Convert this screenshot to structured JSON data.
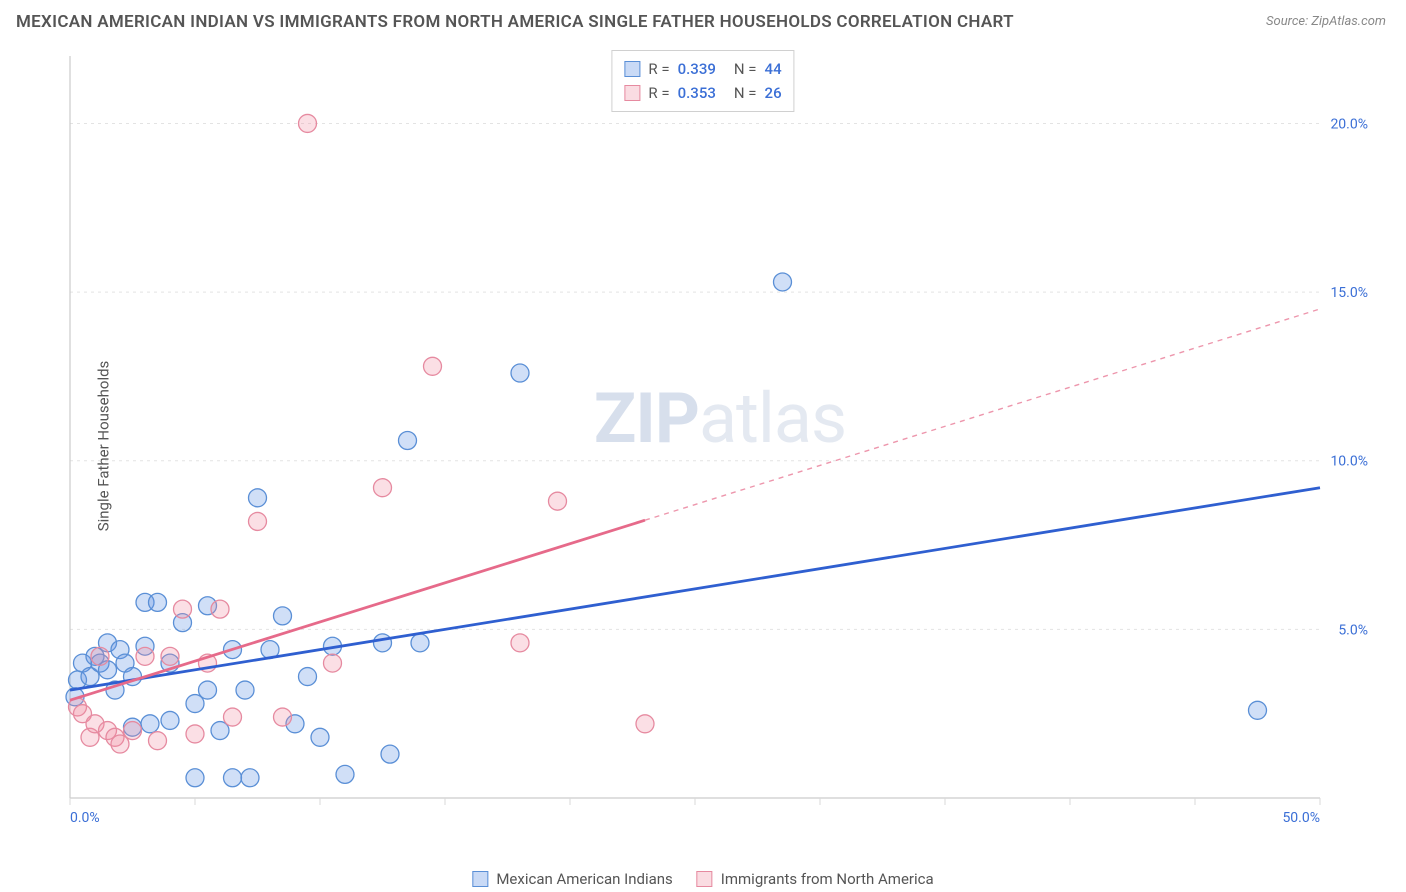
{
  "title": "MEXICAN AMERICAN INDIAN VS IMMIGRANTS FROM NORTH AMERICA SINGLE FATHER HOUSEHOLDS CORRELATION CHART",
  "source": "Source: ZipAtlas.com",
  "watermark": {
    "bold": "ZIP",
    "rest": "atlas"
  },
  "y_axis_label": "Single Father Households",
  "chart": {
    "type": "scatter",
    "background_color": "#ffffff",
    "grid_color": "#e3e3e3",
    "axis_line_color": "#cccccc",
    "tick_color": "#d8d8d8",
    "xlim": [
      0,
      50
    ],
    "ylim": [
      0,
      22
    ],
    "x_ticks": [
      0,
      5,
      10,
      15,
      20,
      25,
      30,
      35,
      40,
      45,
      50
    ],
    "x_tick_labels": {
      "0": "0.0%",
      "50": "50.0%"
    },
    "y_grid": [
      5,
      10,
      15,
      20
    ],
    "y_tick_labels": {
      "5": "5.0%",
      "10": "10.0%",
      "15": "15.0%",
      "20": "20.0%"
    },
    "marker_radius": 9,
    "marker_stroke_width": 1.3,
    "trend_line_width": 2.8,
    "series": [
      {
        "name": "Mexican American Indians",
        "fill_color": "rgba(100,150,230,0.30)",
        "stroke_color": "#5a8fd6",
        "line_color": "#2f5fd0",
        "R": "0.339",
        "N": "44",
        "trend": {
          "x1": 0,
          "y1": 3.2,
          "x2": 50,
          "y2": 9.2,
          "solid_until_x": 50
        },
        "points": [
          [
            0.2,
            3.0
          ],
          [
            0.3,
            3.5
          ],
          [
            0.5,
            4.0
          ],
          [
            0.8,
            3.6
          ],
          [
            1.0,
            4.2
          ],
          [
            1.2,
            4.0
          ],
          [
            1.5,
            3.8
          ],
          [
            1.5,
            4.6
          ],
          [
            1.8,
            3.2
          ],
          [
            2.0,
            4.4
          ],
          [
            2.2,
            4.0
          ],
          [
            2.5,
            3.6
          ],
          [
            2.5,
            2.1
          ],
          [
            3.0,
            5.8
          ],
          [
            3.0,
            4.5
          ],
          [
            3.2,
            2.2
          ],
          [
            3.5,
            5.8
          ],
          [
            4.0,
            4.0
          ],
          [
            4.0,
            2.3
          ],
          [
            4.5,
            5.2
          ],
          [
            5.0,
            2.8
          ],
          [
            5.0,
            0.6
          ],
          [
            5.5,
            5.7
          ],
          [
            5.5,
            3.2
          ],
          [
            6.0,
            2.0
          ],
          [
            6.5,
            0.6
          ],
          [
            7.0,
            3.2
          ],
          [
            7.2,
            0.6
          ],
          [
            7.5,
            8.9
          ],
          [
            8.0,
            4.4
          ],
          [
            8.5,
            5.4
          ],
          [
            9.0,
            2.2
          ],
          [
            9.5,
            3.6
          ],
          [
            10.0,
            1.8
          ],
          [
            10.5,
            4.5
          ],
          [
            11.0,
            0.7
          ],
          [
            12.5,
            4.6
          ],
          [
            12.8,
            1.3
          ],
          [
            13.5,
            10.6
          ],
          [
            14.0,
            4.6
          ],
          [
            18.0,
            12.6
          ],
          [
            28.5,
            15.3
          ],
          [
            47.5,
            2.6
          ],
          [
            6.5,
            4.4
          ]
        ]
      },
      {
        "name": "Immigrants from North America",
        "fill_color": "rgba(240,140,160,0.28)",
        "stroke_color": "#e68aa0",
        "line_color": "#e66a8a",
        "R": "0.353",
        "N": "26",
        "trend": {
          "x1": 0,
          "y1": 2.9,
          "x2": 50,
          "y2": 14.5,
          "solid_until_x": 23
        },
        "points": [
          [
            0.3,
            2.7
          ],
          [
            0.5,
            2.5
          ],
          [
            0.8,
            1.8
          ],
          [
            1.0,
            2.2
          ],
          [
            1.2,
            4.2
          ],
          [
            1.5,
            2.0
          ],
          [
            1.8,
            1.8
          ],
          [
            2.0,
            1.6
          ],
          [
            2.5,
            2.0
          ],
          [
            3.0,
            4.2
          ],
          [
            3.5,
            1.7
          ],
          [
            4.0,
            4.2
          ],
          [
            4.5,
            5.6
          ],
          [
            5.0,
            1.9
          ],
          [
            5.5,
            4.0
          ],
          [
            6.0,
            5.6
          ],
          [
            6.5,
            2.4
          ],
          [
            7.5,
            8.2
          ],
          [
            8.5,
            2.4
          ],
          [
            9.5,
            20.0
          ],
          [
            10.5,
            4.0
          ],
          [
            12.5,
            9.2
          ],
          [
            14.5,
            12.8
          ],
          [
            18.0,
            4.6
          ],
          [
            19.5,
            8.8
          ],
          [
            23.0,
            2.2
          ]
        ]
      }
    ]
  },
  "legend_top": {
    "r_label": "R =",
    "n_label": "N ="
  },
  "legend_bottom": [
    {
      "swatch": "blue",
      "label": "Mexican American Indians"
    },
    {
      "swatch": "pink",
      "label": "Immigrants from North America"
    }
  ]
}
